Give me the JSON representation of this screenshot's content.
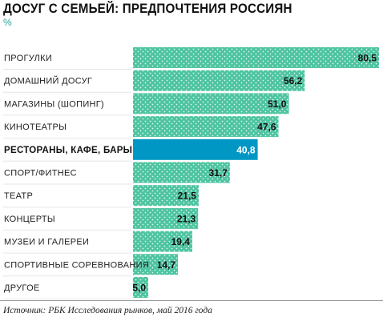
{
  "title": "ДОСУГ С СЕМЬЕЙ: ПРЕДПОЧТЕНИЯ РОССИЯН",
  "unit": "%",
  "source": "Источник: РБК Исследования рынков, май 2016 года",
  "colors": {
    "bar": "#4dc4a0",
    "bar_dots": "#ffffff",
    "highlight": "#0097c4"
  },
  "chart_data": {
    "type": "bar",
    "orientation": "horizontal",
    "title": "ДОСУГ С СЕМЬЕЙ: ПРЕДПОЧТЕНИЯ РОССИЯН",
    "ylabel": "%",
    "categories": [
      "ПРОГУЛКИ",
      "ДОМАШНИЙ ДОСУГ",
      "МАГАЗИНЫ (ШОПИНГ)",
      "КИНОТЕАТРЫ",
      "РЕСТОРАНЫ, КАФЕ, БАРЫ",
      "СПОРТ/ФИТНЕС",
      "ТЕАТР",
      "КОНЦЕРТЫ",
      "МУЗЕИ И ГАЛЕРЕИ",
      "СПОРТИВНЫЕ СОРЕВНОВАНИЯ",
      "ДРУГОЕ"
    ],
    "values": [
      80.5,
      56.2,
      51.0,
      47.6,
      40.8,
      31.7,
      21.5,
      21.3,
      19.4,
      14.7,
      5.0
    ],
    "value_labels": [
      "80,5",
      "56,2",
      "51,0",
      "47,6",
      "40,8",
      "31,7",
      "21,5",
      "21,3",
      "19,4",
      "14,7",
      "5,0"
    ],
    "highlighted_category": "РЕСТОРАНЫ, КАФЕ, БАРЫ",
    "xlim": [
      0,
      80.5
    ],
    "grid": false,
    "legend": "none"
  }
}
